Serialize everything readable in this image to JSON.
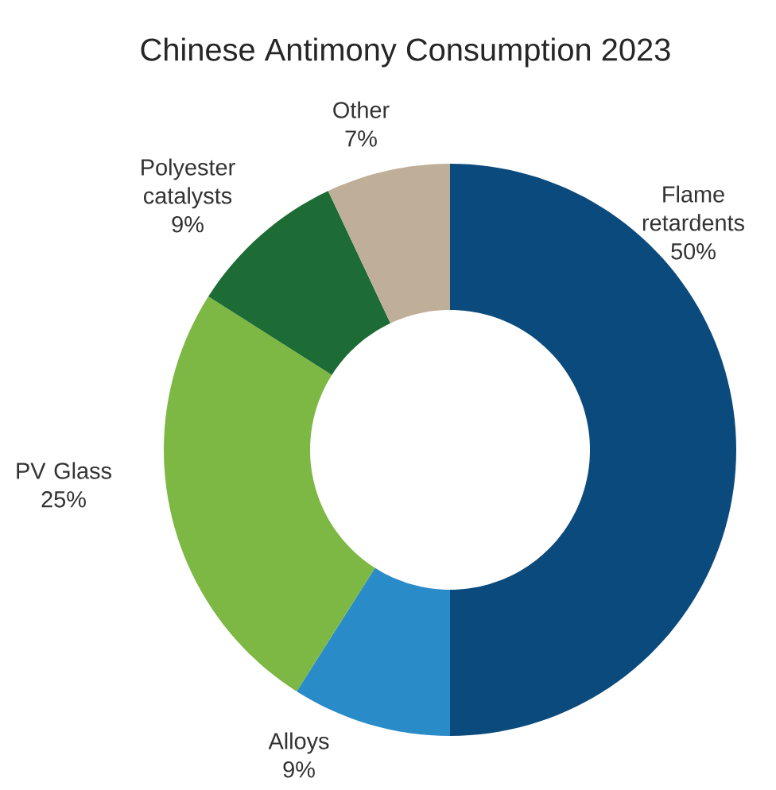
{
  "chart_data": {
    "type": "donut",
    "title": "Chinese Antimony Consumption 2023",
    "categories": [
      "Flame retardents",
      "Alloys",
      "PV Glass",
      "Polyester catalysts",
      "Other"
    ],
    "values": [
      50,
      9,
      25,
      9,
      7
    ],
    "value_labels": [
      "50%",
      "9%",
      "25%",
      "9%",
      "7%"
    ],
    "colors": [
      "#0b4a7c",
      "#2a8bc9",
      "#7cb843",
      "#1d6b35",
      "#bfae98"
    ]
  }
}
